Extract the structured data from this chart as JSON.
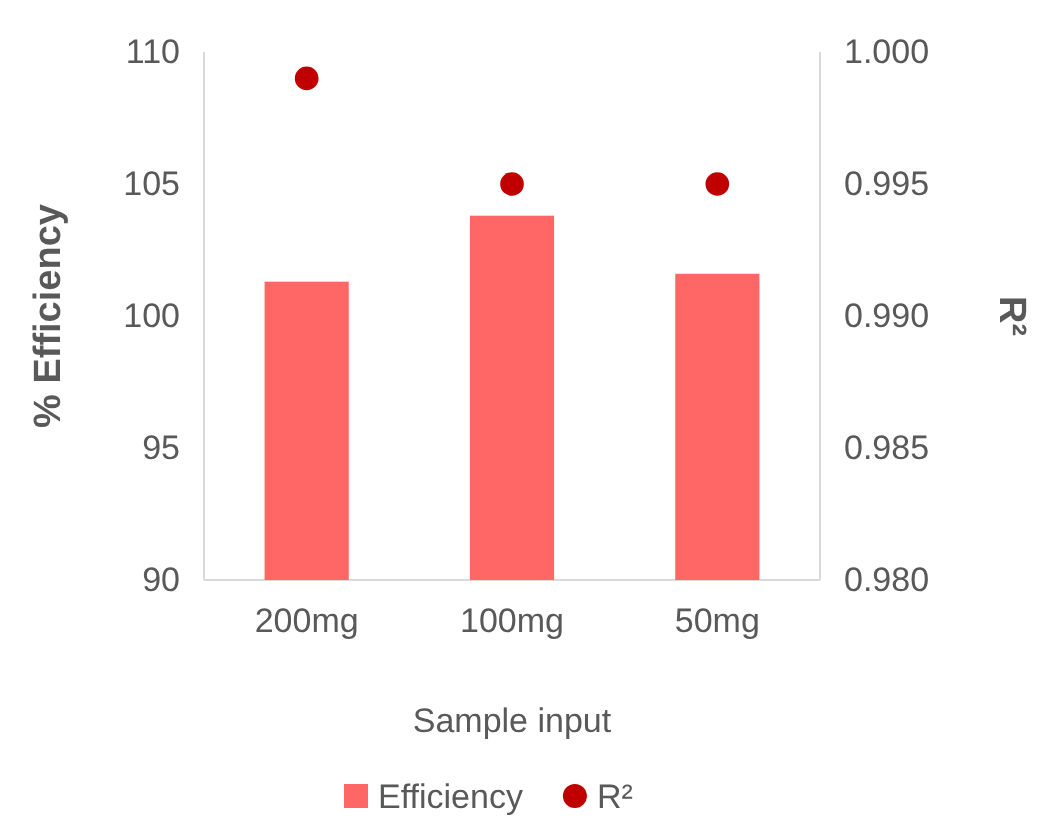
{
  "chart_data": {
    "type": "bar",
    "xlabel": "Sample input",
    "ylabel": "% Efficiency",
    "y2label": "R²",
    "categories": [
      "200mg",
      "100mg",
      "50mg"
    ],
    "series": [
      {
        "name": "Efficiency",
        "color": "#ff6666",
        "values": [
          101.3,
          103.8,
          101.6
        ]
      },
      {
        "name": "R²",
        "type": "scatter",
        "axis": "y2",
        "color": "#c00000",
        "marker": "circle",
        "values": [
          0.999,
          0.995,
          0.995
        ]
      }
    ],
    "ylim": [
      90,
      110
    ],
    "yticks": [
      90,
      95,
      100,
      105,
      110
    ],
    "y2lim": [
      0.98,
      1.0
    ],
    "y2ticks": [
      {
        "value": 0.98,
        "label": "0.980"
      },
      {
        "value": 0.985,
        "label": "0.985"
      },
      {
        "value": 0.99,
        "label": "0.990"
      },
      {
        "value": 0.995,
        "label": "0.995"
      },
      {
        "value": 1.0,
        "label": "1.000"
      }
    ],
    "legend": "bottom",
    "grid": false
  }
}
